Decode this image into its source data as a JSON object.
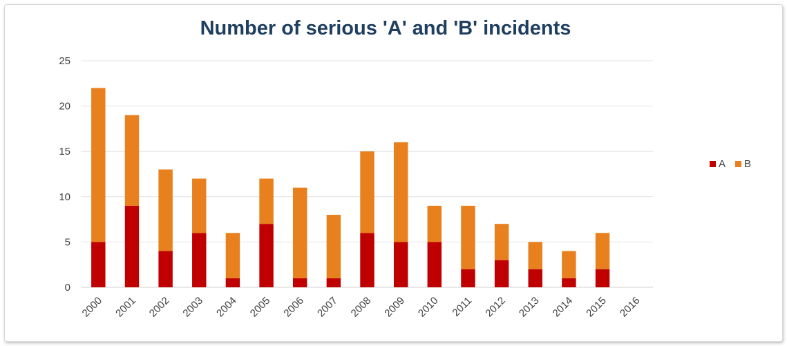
{
  "chart_data": {
    "type": "bar",
    "stacked": true,
    "title": "Number of serious  'A' and 'B' incidents",
    "xlabel": "",
    "ylabel": "",
    "categories": [
      "2000",
      "2001",
      "2002",
      "2003",
      "2004",
      "2005",
      "2006",
      "2007",
      "2008",
      "2009",
      "2010",
      "2011",
      "2012",
      "2013",
      "2014",
      "2015",
      "2016"
    ],
    "series": [
      {
        "name": "A",
        "color": "#c00000",
        "values": [
          5,
          9,
          4,
          6,
          1,
          7,
          1,
          1,
          6,
          5,
          5,
          2,
          3,
          2,
          1,
          2,
          0
        ]
      },
      {
        "name": "B",
        "color": "#e8801e",
        "values": [
          17,
          10,
          9,
          6,
          5,
          5,
          10,
          7,
          9,
          11,
          4,
          7,
          4,
          3,
          3,
          4,
          0
        ]
      }
    ],
    "ylim": [
      0,
      25
    ],
    "yticks": [
      0,
      5,
      10,
      15,
      20,
      25
    ],
    "grid": true,
    "legend_position": "right"
  }
}
